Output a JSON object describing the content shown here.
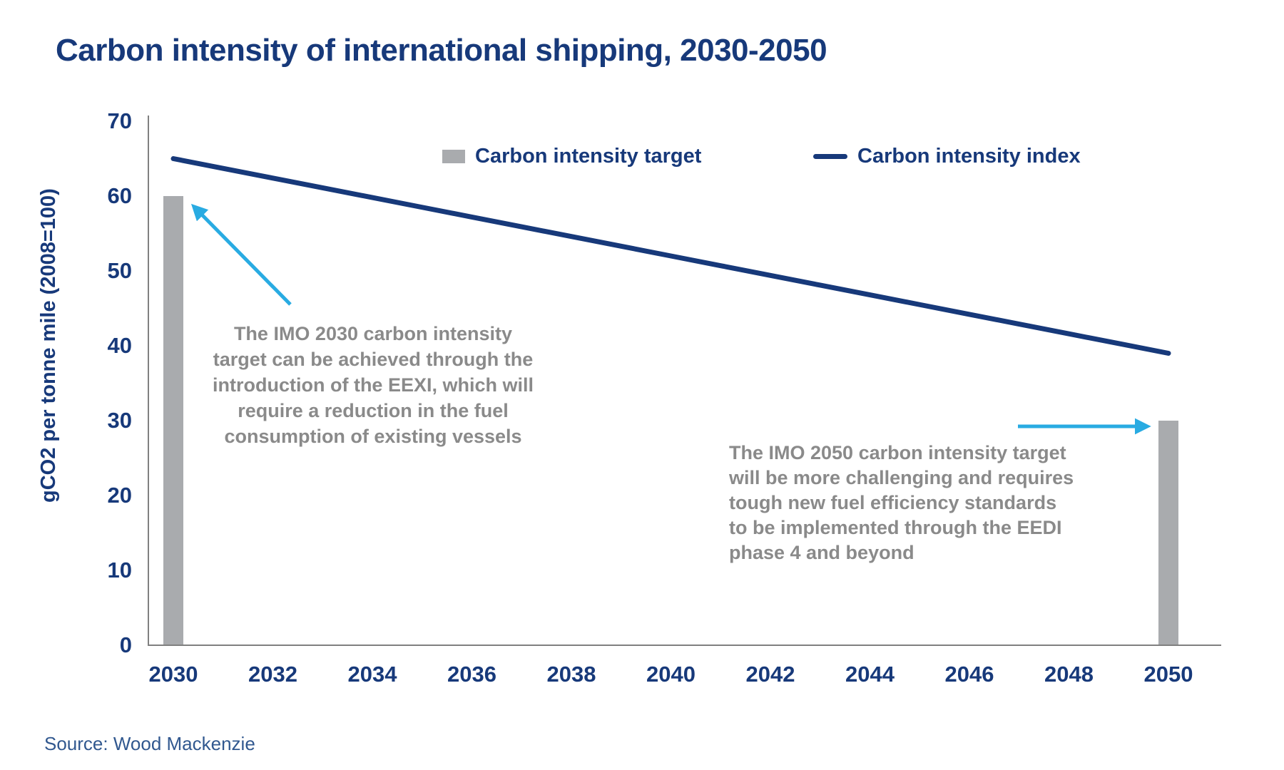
{
  "title": "Carbon intensity of international shipping, 2030-2050",
  "source": "Source: Wood Mackenzie",
  "legend": [
    {
      "label": "Carbon intensity target",
      "swatch": "bar-swatch-icon"
    },
    {
      "label": "Carbon intensity index",
      "swatch": "line-swatch-icon"
    }
  ],
  "annotations": {
    "imo2030": "The IMO 2030 carbon intensity\ntarget can be achieved through the\nintroduction of the EEXI, which will\nrequire a reduction in the fuel\nconsumption of existing vessels",
    "imo2050": "The IMO 2050 carbon intensity target\nwill be more challenging and requires\ntough new fuel efficiency standards\nto be implemented through the EEDI\nphase 4 and beyond"
  },
  "colors": {
    "navy": "#17397A",
    "bar_gray": "#A9ABAE",
    "annotation_gray": "#8A8A8A",
    "arrow_blue": "#29ABE2",
    "axis_gray": "#808080",
    "source_blue": "#31588F"
  },
  "chart_data": {
    "type": "combo",
    "title": "Carbon intensity of international shipping, 2030-2050",
    "ylabel": "gCO2 per tonne mile (2008=100)",
    "xlabel": "",
    "ylim": [
      0,
      70
    ],
    "y_ticks": [
      70,
      60,
      50,
      40,
      30,
      20,
      10,
      0
    ],
    "x_ticks": [
      2030,
      2032,
      2034,
      2036,
      2038,
      2040,
      2042,
      2044,
      2046,
      2048,
      2050
    ],
    "grid": false,
    "legend_position": "top",
    "x": [
      2030,
      2031,
      2032,
      2033,
      2034,
      2035,
      2036,
      2037,
      2038,
      2039,
      2040,
      2041,
      2042,
      2043,
      2044,
      2045,
      2046,
      2047,
      2048,
      2049,
      2050
    ],
    "series": [
      {
        "name": "Carbon intensity target",
        "type": "bar",
        "color": "#A9ABAE",
        "points": [
          {
            "year": 2030,
            "value": 60
          },
          {
            "year": 2050,
            "value": 30
          }
        ]
      },
      {
        "name": "Carbon intensity index",
        "type": "line",
        "color": "#17397A",
        "values": [
          65,
          63.7,
          62.4,
          61.1,
          59.8,
          58.5,
          57.2,
          55.9,
          54.6,
          53.3,
          52.0,
          50.7,
          49.4,
          48.1,
          46.8,
          45.5,
          44.2,
          42.9,
          41.6,
          40.3,
          39
        ]
      }
    ]
  }
}
